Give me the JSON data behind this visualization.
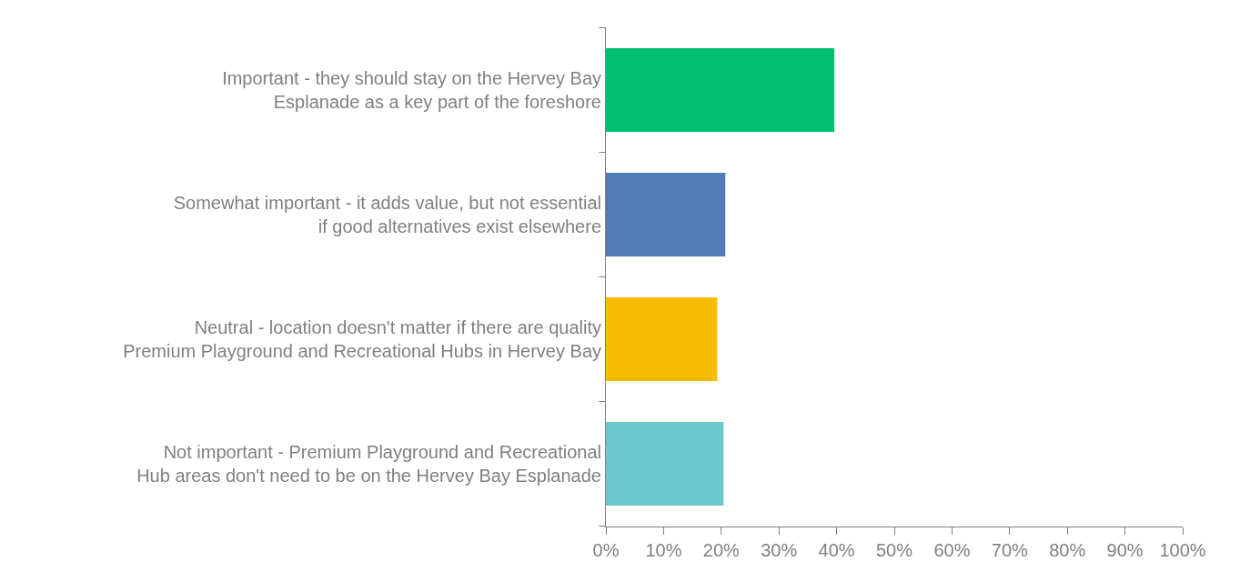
{
  "chart_data": {
    "type": "bar",
    "orientation": "horizontal",
    "categories": [
      "Important - they should stay on the Hervey Bay Esplanade as a key part of the foreshore",
      "Somewhat important - it adds value, but not essential if good alternatives exist elsewhere",
      "Neutral - location doesn't matter if there are quality Premium Playground and Recreational Hubs in Hervey Bay",
      "Not important - Premium Playground and Recreational Hub areas don't need to be on the Hervey Bay Esplanade"
    ],
    "values": [
      39.6,
      20.7,
      19.3,
      20.4
    ],
    "colors": [
      "#00bf6f",
      "#507cb6",
      "#f7bc00",
      "#6bc8cd"
    ],
    "xlim": [
      0,
      100
    ],
    "xticks": [
      {
        "value": 0,
        "label": "0%"
      },
      {
        "value": 10,
        "label": "10%"
      },
      {
        "value": 20,
        "label": "20%"
      },
      {
        "value": 30,
        "label": "30%"
      },
      {
        "value": 40,
        "label": "40%"
      },
      {
        "value": 50,
        "label": "50%"
      },
      {
        "value": 60,
        "label": "60%"
      },
      {
        "value": 70,
        "label": "70%"
      },
      {
        "value": 80,
        "label": "80%"
      },
      {
        "value": 90,
        "label": "90%"
      },
      {
        "value": 100,
        "label": "100%"
      }
    ],
    "legend": false
  }
}
